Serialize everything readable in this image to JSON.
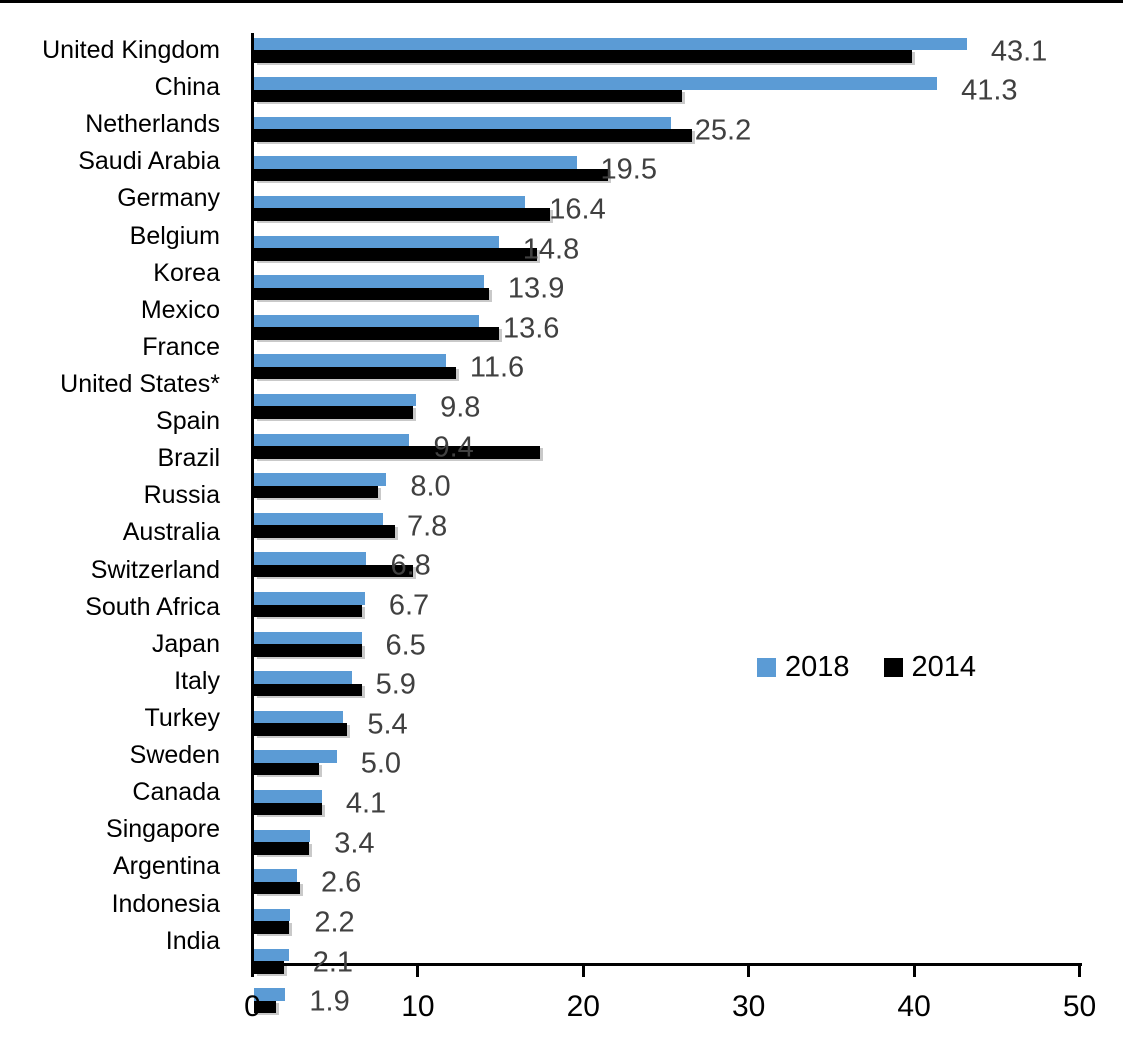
{
  "chart_data": {
    "type": "bar",
    "orientation": "horizontal",
    "title": "",
    "xlabel": "",
    "ylabel": "",
    "xlim": [
      0,
      50
    ],
    "x_ticks": [
      0,
      10,
      20,
      30,
      40,
      50
    ],
    "grid": false,
    "legend_position": "center-right",
    "categories": [
      "United Kingdom",
      "China",
      "Netherlands",
      "Saudi Arabia",
      "Germany",
      "Belgium",
      "Korea",
      "Mexico",
      "France",
      "United States*",
      "Spain",
      "Brazil",
      "Russia",
      "Australia",
      "Switzerland",
      "South Africa",
      "Japan",
      "Italy",
      "Turkey",
      "Sweden",
      "Canada",
      "Singapore",
      "Argentina",
      "Indonesia",
      "India"
    ],
    "series": [
      {
        "name": "2018",
        "color": "#5B9BD5",
        "values": [
          43.1,
          41.3,
          25.2,
          19.5,
          16.4,
          14.8,
          13.9,
          13.6,
          11.6,
          9.8,
          9.4,
          8.0,
          7.8,
          6.8,
          6.7,
          6.5,
          5.9,
          5.4,
          5.0,
          4.1,
          3.4,
          2.6,
          2.2,
          2.1,
          1.9
        ]
      },
      {
        "name": "2014",
        "color": "#000000",
        "values": [
          39.8,
          25.9,
          26.5,
          21.4,
          17.9,
          17.1,
          14.2,
          14.8,
          12.2,
          9.6,
          17.3,
          7.5,
          8.5,
          9.6,
          6.5,
          6.5,
          6.5,
          5.6,
          3.9,
          4.1,
          3.3,
          2.8,
          2.1,
          1.8,
          1.3
        ]
      }
    ],
    "data_labels": [
      "43.1",
      "41.3",
      "25.2",
      "19.5",
      "16.4",
      "14.8",
      "13.9",
      "13.6",
      "11.6",
      "9.8",
      "9.4",
      "8.0",
      "7.8",
      "6.8",
      "6.7",
      "6.5",
      "5.9",
      "5.4",
      "5.0",
      "4.1",
      "3.4",
      "2.6",
      "2.2",
      "2.1",
      "1.9"
    ],
    "data_label_series": "2018",
    "data_label_color": "#404040",
    "axis_color": "#000000"
  }
}
